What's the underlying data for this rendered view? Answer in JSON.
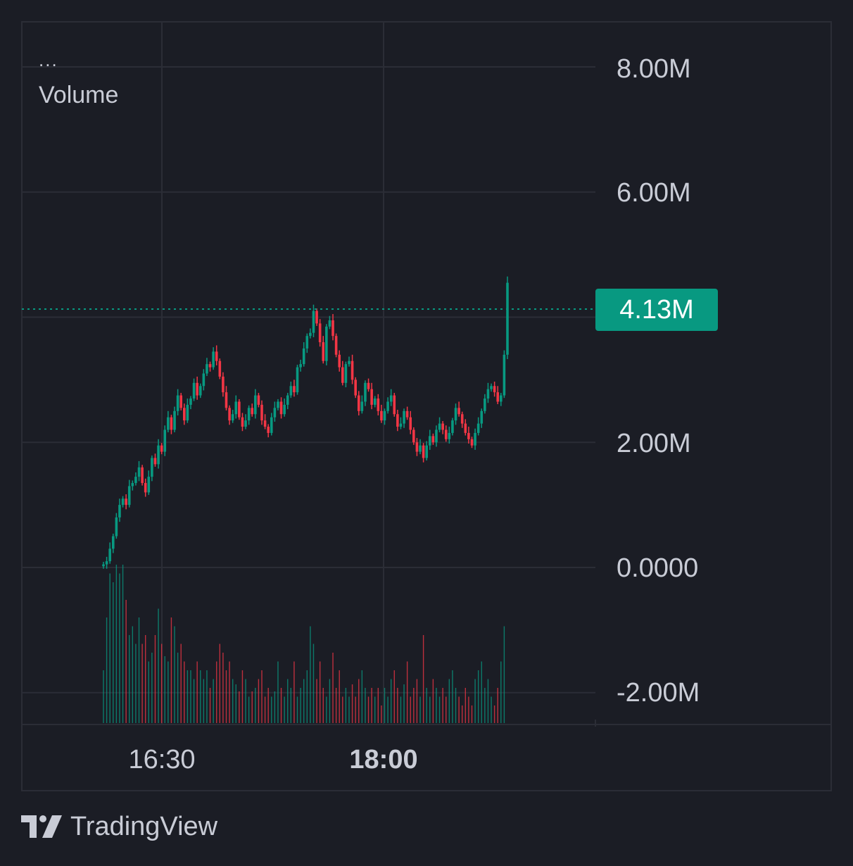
{
  "legend": {
    "dots": "...",
    "title": "Volume"
  },
  "y_axis_labels": [
    "8.00M",
    "6.00M",
    "2.00M",
    "0.0000",
    "-2.00M"
  ],
  "x_axis_labels": [
    "16:30",
    "18:00"
  ],
  "last_value_label": "4.13M",
  "brand": "TradingView",
  "colors": {
    "background": "#1b1d25",
    "grid": "#2b2d36",
    "up": "#089981",
    "down": "#f23645",
    "text": "#c9ccd6"
  },
  "chart_data": {
    "type": "candlestick",
    "title": "Volume",
    "ylim": [
      -2.5,
      8.6
    ],
    "y_ticks": [
      8,
      6,
      4,
      2,
      0,
      -2
    ],
    "y_unit": "M",
    "last_value": 4.13,
    "x_ticks": [
      "16:30",
      "18:00"
    ],
    "grid": true,
    "close_path": [
      0.05,
      0.1,
      0.3,
      0.5,
      0.8,
      1.0,
      1.1,
      1.0,
      1.3,
      1.35,
      1.45,
      1.6,
      1.35,
      1.2,
      1.45,
      1.75,
      1.65,
      1.95,
      1.85,
      2.2,
      2.4,
      2.2,
      2.5,
      2.75,
      2.55,
      2.35,
      2.6,
      2.7,
      2.95,
      2.75,
      2.9,
      3.1,
      3.25,
      3.2,
      3.45,
      3.3,
      3.05,
      2.8,
      2.55,
      2.35,
      2.45,
      2.65,
      2.4,
      2.25,
      2.35,
      2.55,
      2.45,
      2.75,
      2.6,
      2.35,
      2.25,
      2.15,
      2.4,
      2.55,
      2.65,
      2.45,
      2.6,
      2.75,
      2.9,
      2.8,
      3.2,
      3.25,
      3.5,
      3.7,
      3.75,
      4.1,
      3.9,
      3.6,
      3.3,
      3.85,
      3.95,
      3.7,
      3.4,
      3.2,
      2.95,
      3.25,
      3.3,
      3.0,
      2.75,
      2.5,
      2.65,
      2.95,
      2.85,
      2.6,
      2.7,
      2.5,
      2.35,
      2.5,
      2.65,
      2.75,
      2.45,
      2.25,
      2.3,
      2.5,
      2.4,
      2.2,
      2.0,
      1.85,
      1.95,
      1.75,
      1.95,
      2.1,
      2.0,
      2.2,
      2.3,
      2.2,
      2.05,
      2.15,
      2.35,
      2.55,
      2.45,
      2.3,
      2.15,
      2.05,
      1.95,
      2.15,
      2.3,
      2.5,
      2.7,
      2.85,
      2.9,
      2.8,
      2.65,
      2.75,
      3.4,
      4.55
    ],
    "volume_path": [
      0.3,
      0.6,
      0.85,
      0.8,
      0.9,
      0.85,
      0.9,
      0.7,
      0.5,
      0.55,
      0.45,
      0.6,
      0.45,
      0.5,
      0.35,
      0.4,
      0.5,
      0.65,
      0.45,
      0.38,
      0.35,
      0.6,
      0.55,
      0.4,
      0.45,
      0.35,
      0.3,
      0.3,
      0.25,
      0.35,
      0.3,
      0.25,
      0.3,
      0.2,
      0.25,
      0.35,
      0.45,
      0.4,
      0.3,
      0.35,
      0.25,
      0.22,
      0.18,
      0.3,
      0.25,
      0.15,
      0.18,
      0.2,
      0.25,
      0.3,
      0.15,
      0.2,
      0.15,
      0.18,
      0.35,
      0.2,
      0.15,
      0.25,
      0.2,
      0.35,
      0.15,
      0.2,
      0.25,
      0.3,
      0.55,
      0.45,
      0.25,
      0.35,
      0.2,
      0.15,
      0.25,
      0.4,
      0.2,
      0.3,
      0.15,
      0.2,
      0.15,
      0.22,
      0.15,
      0.25,
      0.3,
      0.2,
      0.15,
      0.2,
      0.15,
      0.2,
      0.1,
      0.2,
      0.15,
      0.25,
      0.3,
      0.2,
      0.15,
      0.22,
      0.35,
      0.15,
      0.2,
      0.25,
      0.15,
      0.5,
      0.2,
      0.15,
      0.25,
      0.2,
      0.15,
      0.2,
      0.15,
      0.25,
      0.3,
      0.2,
      0.15,
      0.1,
      0.2,
      0.15,
      0.1,
      0.25,
      0.3,
      0.35,
      0.2,
      0.25,
      0.15,
      0.1,
      0.2,
      0.35,
      0.55
    ]
  }
}
